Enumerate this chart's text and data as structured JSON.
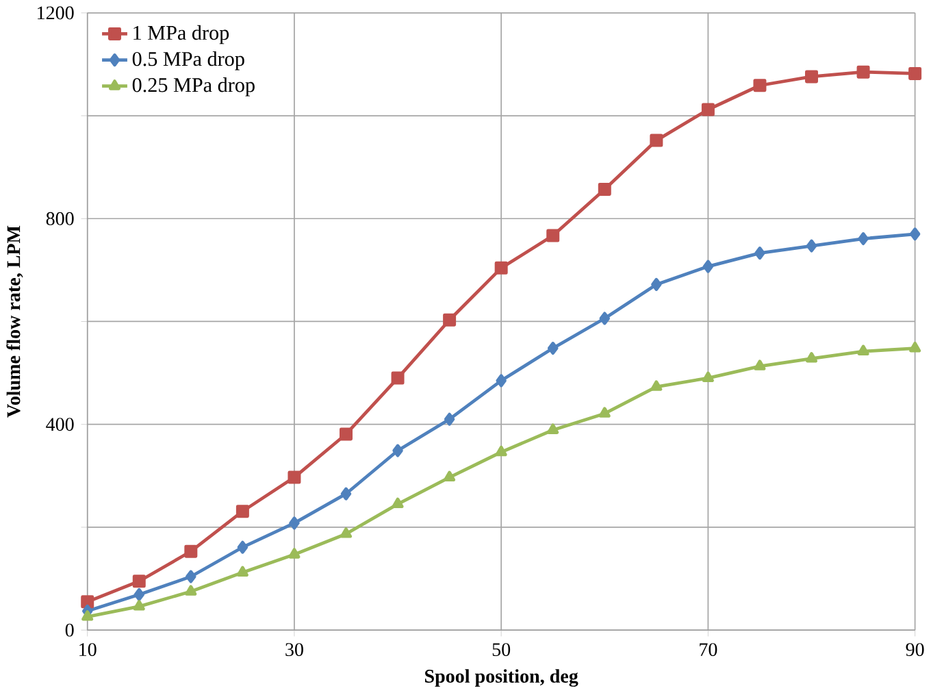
{
  "chart_data": {
    "type": "line",
    "xlabel": "Spool position, deg",
    "ylabel": "Volume flow rate, LPM",
    "x": [
      10,
      15,
      20,
      25,
      30,
      35,
      40,
      45,
      50,
      55,
      60,
      65,
      70,
      75,
      80,
      85,
      90
    ],
    "series": [
      {
        "name": "1 MPa drop",
        "color": "#c0504d",
        "marker": "square",
        "values": [
          55,
          95,
          153,
          231,
          297,
          381,
          490,
          603,
          704,
          767,
          857,
          952,
          1012,
          1059,
          1076,
          1085,
          1082
        ]
      },
      {
        "name": "0.5 MPa drop",
        "color": "#4f81bd",
        "marker": "diamond",
        "values": [
          37,
          69,
          104,
          161,
          208,
          265,
          349,
          410,
          485,
          548,
          606,
          672,
          707,
          733,
          747,
          761,
          770
        ]
      },
      {
        "name": "0.25 MPa drop",
        "color": "#9bbb59",
        "marker": "triangle",
        "values": [
          26,
          46,
          75,
          112,
          147,
          187,
          245,
          297,
          346,
          389,
          421,
          473,
          490,
          513,
          528,
          542,
          548
        ]
      }
    ],
    "xlim": [
      10,
      90
    ],
    "xticks": [
      10,
      30,
      50,
      70,
      90
    ],
    "ylim": [
      0,
      1200
    ],
    "yticks": [
      0,
      {
        "value": 200,
        "label": null
      },
      400,
      {
        "value": 600,
        "label": null
      },
      800,
      {
        "value": 1000,
        "label": null
      },
      1200
    ],
    "grid": true,
    "legend": "top left",
    "line_style": "solid"
  }
}
